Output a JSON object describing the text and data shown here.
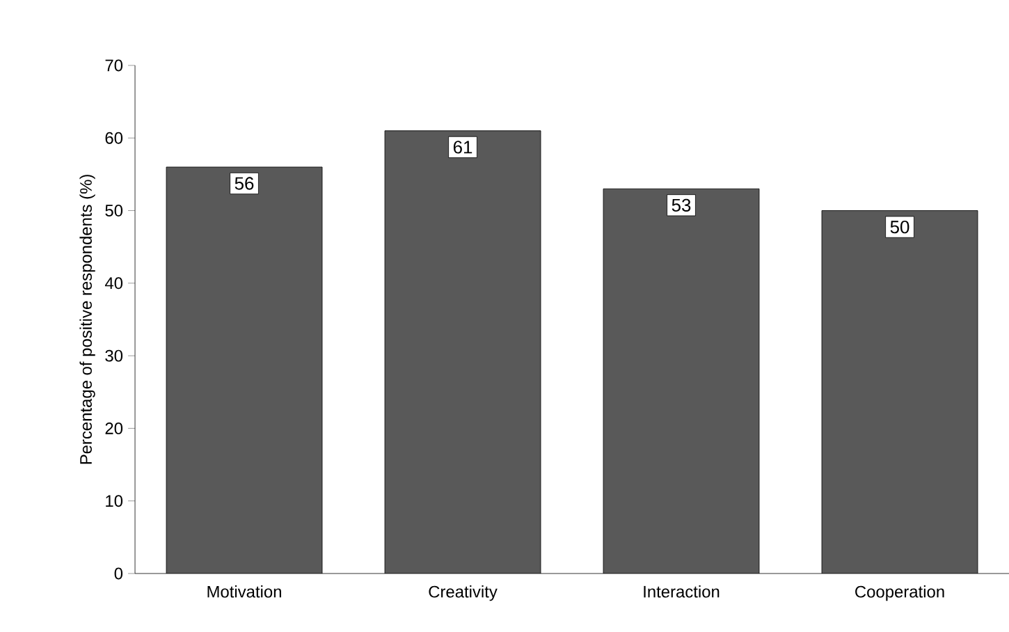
{
  "chart_data": {
    "type": "bar",
    "ylabel": "Percentage of positive respondents (%)",
    "categories": [
      "Motivation",
      "Creativity",
      "Interaction",
      "Cooperation"
    ],
    "values": [
      56,
      61,
      53,
      50
    ],
    "color": "#595959",
    "ylim": [
      0,
      70
    ],
    "yticks": [
      0,
      10,
      20,
      30,
      40,
      50,
      60,
      70
    ],
    "grid": false,
    "data_labels": true
  }
}
